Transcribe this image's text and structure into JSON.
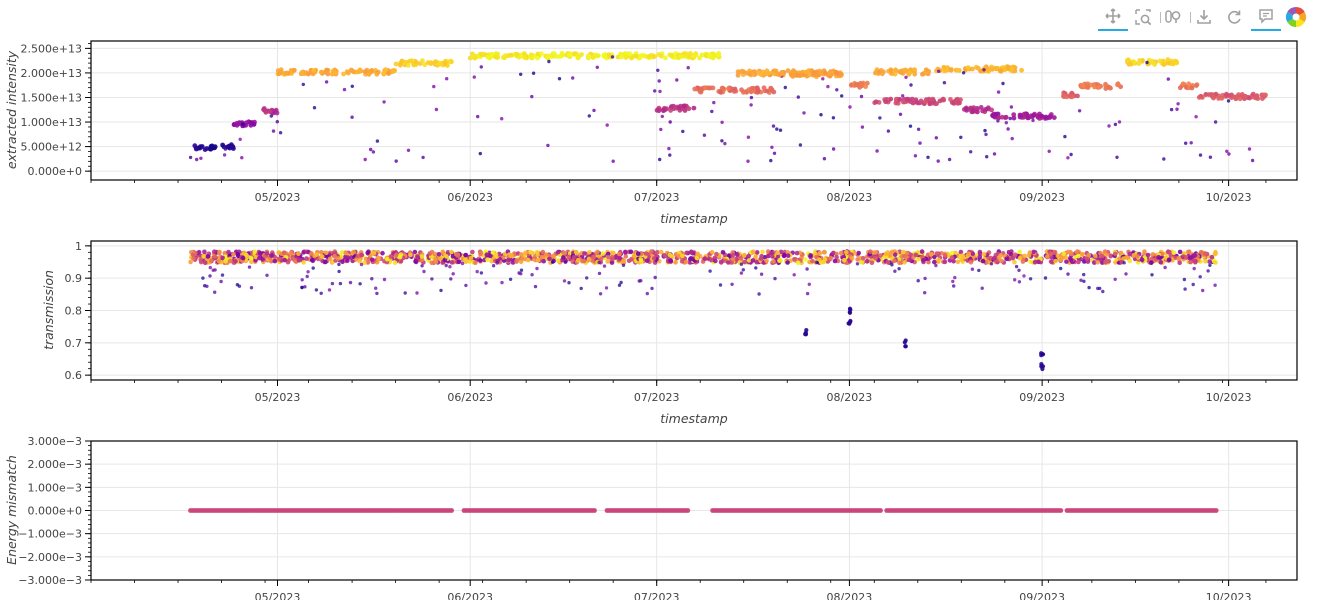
{
  "toolbar": {
    "tools": [
      {
        "name": "pan",
        "icon": "pan-icon",
        "active": true
      },
      {
        "name": "box-zoom",
        "icon": "box-zoom-icon",
        "active": false
      },
      {
        "name": "wheel-zoom",
        "icon": "wheel-zoom-icon",
        "active": false
      },
      {
        "name": "save",
        "icon": "save-icon",
        "active": false
      },
      {
        "name": "reset",
        "icon": "reset-icon",
        "active": false
      },
      {
        "name": "hover",
        "icon": "hover-icon",
        "active": true
      },
      {
        "name": "bokeh-logo",
        "icon": "bokeh-logo-icon",
        "active": false
      }
    ],
    "colors": {
      "icon": "#a0a0a0",
      "active_underline": "#26aae1"
    }
  },
  "chart_data": [
    {
      "type": "scatter",
      "ylabel": "extracted intensity",
      "xlabel": "timestamp",
      "x_ticks": [
        "05/2023",
        "06/2023",
        "07/2023",
        "08/2023",
        "09/2023",
        "10/2023"
      ],
      "y_ticks": [
        "0.000e+0",
        "5.000e+12",
        "1.000e+13",
        "1.500e+13",
        "2.000e+13",
        "2.500e+13"
      ],
      "ylim": [
        -1800000000000.0,
        26500000000000.0
      ],
      "xlim": [
        "2023-04-01",
        "2023-10-12"
      ],
      "grid": true,
      "colormap": "plasma",
      "segments": [
        {
          "start": "2023-04-17",
          "end": "2023-04-21",
          "y": 4800000000000.0
        },
        {
          "start": "2023-04-22",
          "end": "2023-04-24",
          "y": 4900000000000.0
        },
        {
          "start": "2023-04-24",
          "end": "2023-04-28",
          "y": 9700000000000.0
        },
        {
          "start": "2023-04-28",
          "end": "2023-05-01",
          "y": 12300000000000.0
        },
        {
          "start": "2023-05-01",
          "end": "2023-05-20",
          "y": 20200000000000.0
        },
        {
          "start": "2023-05-20",
          "end": "2023-05-29",
          "y": 22000000000000.0
        },
        {
          "start": "2023-06-01",
          "end": "2023-06-07",
          "y": 23500000000000.0
        },
        {
          "start": "2023-06-07",
          "end": "2023-07-12",
          "y": 23500000000000.0
        },
        {
          "start": "2023-07-14",
          "end": "2023-07-30",
          "y": 20000000000000.0
        },
        {
          "start": "2023-08-05",
          "end": "2023-08-14",
          "y": 20200000000000.0
        },
        {
          "start": "2023-08-15",
          "end": "2023-08-29",
          "y": 20800000000000.0
        },
        {
          "start": "2023-07-01",
          "end": "2023-07-07",
          "y": 12800000000000.0
        },
        {
          "start": "2023-07-07",
          "end": "2023-07-20",
          "y": 16500000000000.0
        },
        {
          "start": "2023-07-20",
          "end": "2023-07-31",
          "y": 19700000000000.0
        },
        {
          "start": "2023-08-01",
          "end": "2023-08-04",
          "y": 17500000000000.0
        },
        {
          "start": "2023-08-05",
          "end": "2023-08-19",
          "y": 14200000000000.0
        },
        {
          "start": "2023-08-19",
          "end": "2023-08-24",
          "y": 12500000000000.0
        },
        {
          "start": "2023-08-24",
          "end": "2023-09-03",
          "y": 11200000000000.0
        },
        {
          "start": "2023-09-04",
          "end": "2023-09-07",
          "y": 15500000000000.0
        },
        {
          "start": "2023-09-07",
          "end": "2023-09-14",
          "y": 17300000000000.0
        },
        {
          "start": "2023-09-14",
          "end": "2023-09-23",
          "y": 22200000000000.0
        },
        {
          "start": "2023-09-23",
          "end": "2023-09-26",
          "y": 17300000000000.0
        },
        {
          "start": "2023-09-26",
          "end": "2023-10-07",
          "y": 15200000000000.0
        }
      ]
    },
    {
      "type": "scatter",
      "ylabel": "transmission",
      "xlabel": "timestamp",
      "x_ticks": [
        "05/2023",
        "06/2023",
        "07/2023",
        "08/2023",
        "09/2023",
        "10/2023"
      ],
      "y_ticks": [
        "0.6",
        "0.7",
        "0.8",
        "0.9",
        "1"
      ],
      "ylim": [
        0.585,
        1.015
      ],
      "xlim": [
        "2023-04-01",
        "2023-10-12"
      ],
      "grid": true,
      "colormap": "plasma",
      "band": {
        "start": "2023-04-17",
        "end": "2023-09-29",
        "y": 0.965
      },
      "drops": [
        {
          "x": "2023-07-25",
          "y": 0.73
        },
        {
          "x": "2023-08-01",
          "y": 0.8
        },
        {
          "x": "2023-08-01",
          "y": 0.76
        },
        {
          "x": "2023-08-10",
          "y": 0.7
        },
        {
          "x": "2023-09-01",
          "y": 0.66
        },
        {
          "x": "2023-09-01",
          "y": 0.63
        }
      ]
    },
    {
      "type": "scatter",
      "ylabel": "Energy mismatch",
      "xlabel": "",
      "x_ticks": [
        "05/2023",
        "06/2023",
        "07/2023",
        "08/2023",
        "09/2023",
        "10/2023"
      ],
      "y_ticks": [
        "−3.000e−3",
        "−2.000e−3",
        "−1.000e−3",
        "0.000e+0",
        "1.000e−3",
        "2.000e−3",
        "3.000e−3"
      ],
      "ylim": [
        -0.003,
        0.003
      ],
      "xlim": [
        "2023-04-01",
        "2023-10-12"
      ],
      "grid": true,
      "color": "#c9447a",
      "runs": [
        {
          "start": "2023-04-17",
          "end": "2023-05-29",
          "y": 0
        },
        {
          "start": "2023-05-31",
          "end": "2023-06-21",
          "y": 0
        },
        {
          "start": "2023-06-23",
          "end": "2023-07-06",
          "y": 0
        },
        {
          "start": "2023-07-10",
          "end": "2023-08-06",
          "y": 0
        },
        {
          "start": "2023-08-07",
          "end": "2023-09-04",
          "y": 0
        },
        {
          "start": "2023-09-05",
          "end": "2023-09-29",
          "y": 0
        }
      ]
    }
  ]
}
